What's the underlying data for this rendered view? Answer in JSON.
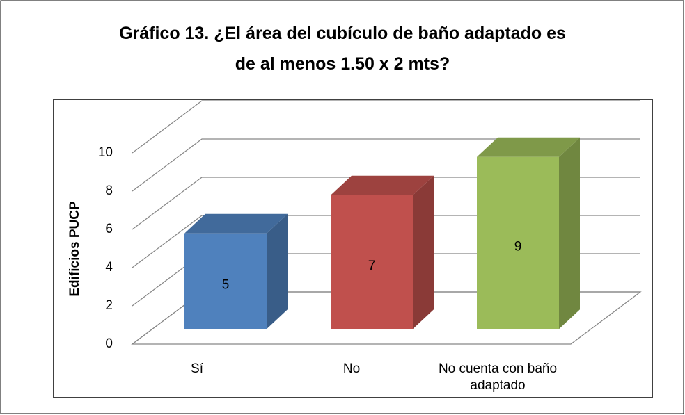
{
  "chart_data": {
    "type": "bar3d",
    "title": "Gráfico 13. ¿El área del cubículo de baño adaptado es de al menos 1.50 x 2 mts?",
    "y_label": "Edificios PUCP",
    "categories": [
      "Sí",
      "No",
      "No cuenta con baño adaptado"
    ],
    "values": [
      5,
      7,
      9
    ],
    "colors": [
      "#4f81bd",
      "#c0504d",
      "#9bbb59"
    ],
    "ylim": [
      0,
      10
    ],
    "yticks": [
      0,
      2,
      4,
      6,
      8,
      10
    ],
    "grid": true
  }
}
